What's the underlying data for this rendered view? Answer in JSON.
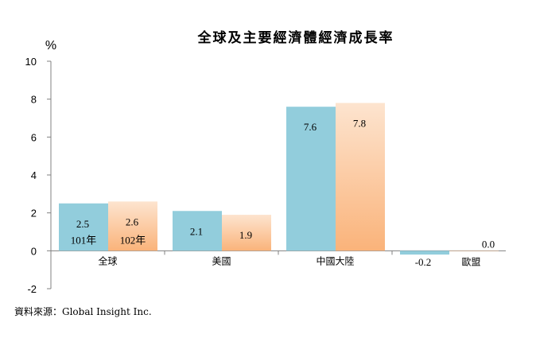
{
  "chart_data": {
    "type": "bar",
    "title": "全球及主要經濟體經濟成長率",
    "ylabel": "%",
    "ylim": [
      -2,
      10
    ],
    "yticks": [
      -2,
      0,
      2,
      4,
      6,
      8,
      10
    ],
    "categories": [
      "全球",
      "美國",
      "中國大陸",
      "歐盟"
    ],
    "series": [
      {
        "name": "101年",
        "color": "#92CDDC",
        "values": [
          2.5,
          2.1,
          7.6,
          -0.2
        ],
        "labels": [
          "2.5",
          "2.1",
          "7.6",
          "-0.2"
        ]
      },
      {
        "name": "102年",
        "color": "#FAC090",
        "values": [
          2.6,
          1.9,
          7.8,
          0.0
        ],
        "labels": [
          "2.6",
          "1.9",
          "7.8",
          "0.0"
        ]
      }
    ],
    "grid": false,
    "source": "資料來源：Global Insight Inc."
  }
}
